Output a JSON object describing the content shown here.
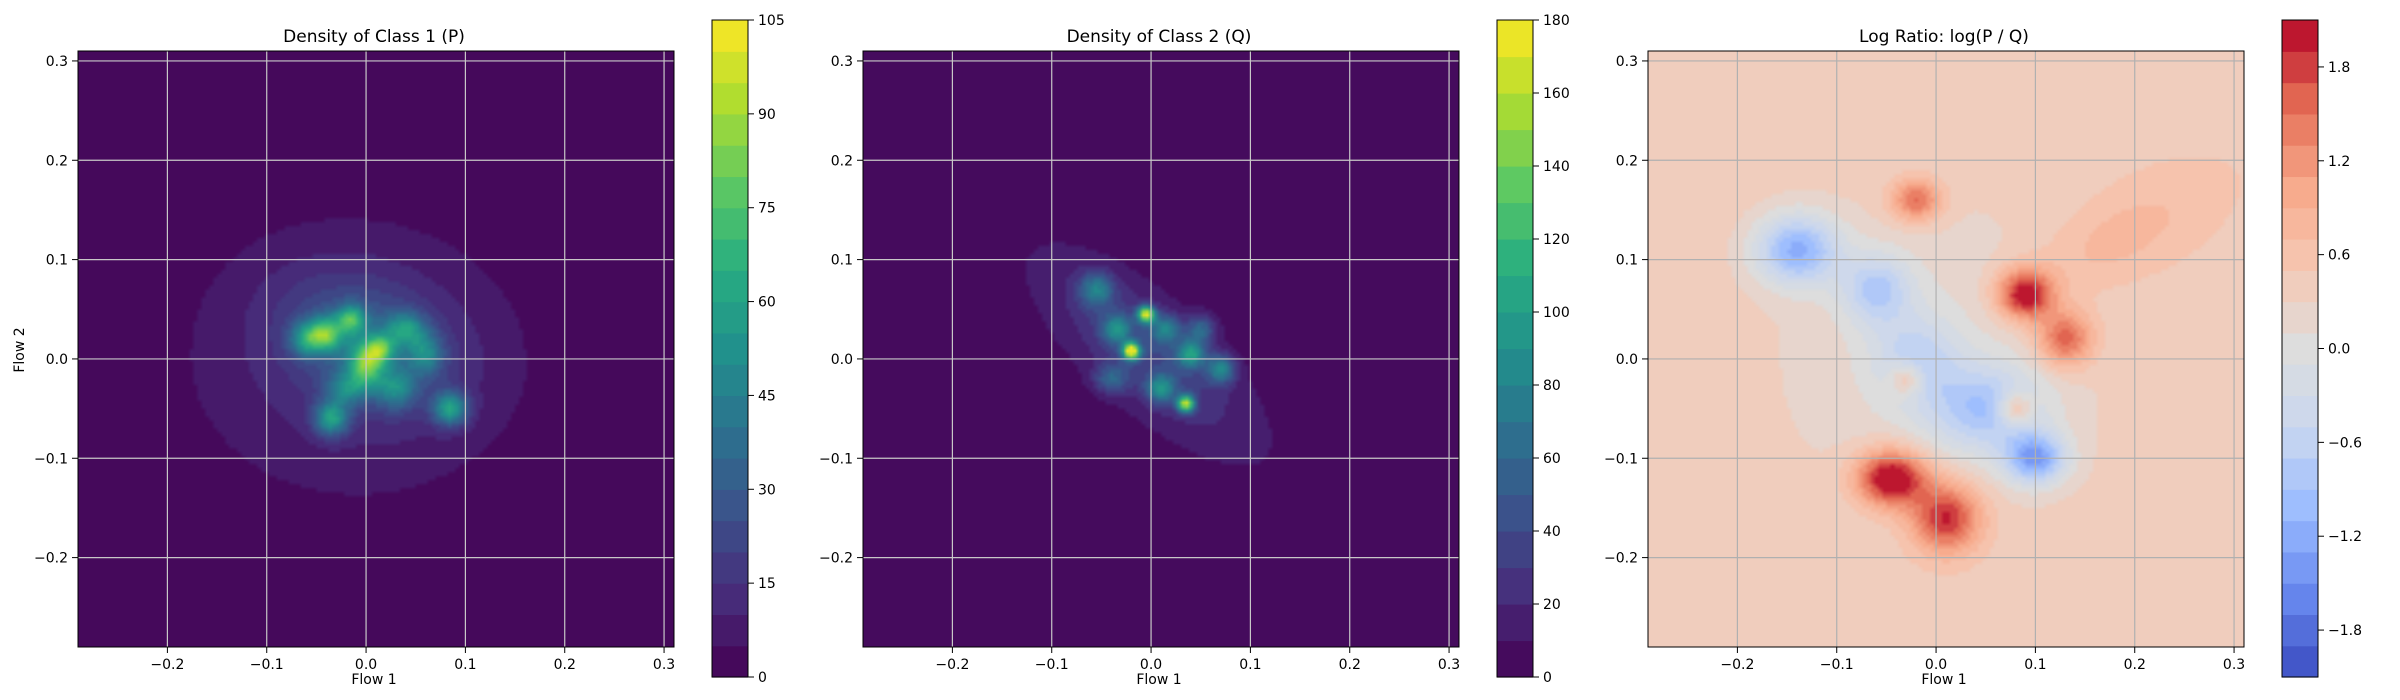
{
  "chart_data": [
    {
      "type": "heatmap",
      "title": "Density of Class 1 (P)",
      "xlabel": "Flow 1",
      "ylabel": "Flow 2",
      "xlim": [
        -0.29,
        0.31
      ],
      "ylim": [
        -0.29,
        0.31
      ],
      "xticks": [
        -0.2,
        -0.1,
        0.0,
        0.1,
        0.2,
        0.3
      ],
      "xtick_labels": [
        "−0.2",
        "−0.1",
        "0.0",
        "0.1",
        "0.2",
        "0.3"
      ],
      "yticks": [
        -0.2,
        -0.1,
        0.0,
        0.1,
        0.2,
        0.3
      ],
      "ytick_labels": [
        "−0.2",
        "−0.1",
        "0.0",
        "0.1",
        "0.2",
        "0.3"
      ],
      "grid": true,
      "colormap": "viridis",
      "colorbar": {
        "min": 0,
        "max": 105,
        "ticks": [
          0,
          15,
          30,
          45,
          60,
          75,
          90,
          105
        ],
        "tick_labels": [
          "0",
          "15",
          "30",
          "45",
          "60",
          "75",
          "90",
          "105"
        ]
      },
      "blobs": [
        {
          "x": -0.01,
          "y": 0.0,
          "sx": 0.115,
          "sy": 0.095,
          "v": 14,
          "rot": 0
        },
        {
          "x": 0.0,
          "y": 0.02,
          "sx": 0.06,
          "sy": 0.04,
          "v": 20,
          "rot": -0.4
        },
        {
          "x": -0.04,
          "y": 0.025,
          "sx": 0.012,
          "sy": 0.012,
          "v": 52
        },
        {
          "x": -0.015,
          "y": 0.04,
          "sx": 0.01,
          "sy": 0.01,
          "v": 46
        },
        {
          "x": 0.0,
          "y": -0.005,
          "sx": 0.012,
          "sy": 0.016,
          "v": 55
        },
        {
          "x": 0.015,
          "y": 0.01,
          "sx": 0.01,
          "sy": 0.01,
          "v": 42
        },
        {
          "x": -0.035,
          "y": -0.06,
          "sx": 0.012,
          "sy": 0.012,
          "v": 48
        },
        {
          "x": 0.085,
          "y": -0.05,
          "sx": 0.012,
          "sy": 0.012,
          "v": 50
        },
        {
          "x": 0.04,
          "y": 0.03,
          "sx": 0.014,
          "sy": 0.012,
          "v": 36
        },
        {
          "x": -0.06,
          "y": 0.02,
          "sx": 0.012,
          "sy": 0.012,
          "v": 38
        },
        {
          "x": 0.03,
          "y": -0.03,
          "sx": 0.014,
          "sy": 0.014,
          "v": 32
        },
        {
          "x": -0.02,
          "y": -0.03,
          "sx": 0.014,
          "sy": 0.012,
          "v": 30
        },
        {
          "x": 0.06,
          "y": 0.005,
          "sx": 0.012,
          "sy": 0.014,
          "v": 30
        }
      ]
    },
    {
      "type": "heatmap",
      "title": "Density of Class 2 (Q)",
      "xlabel": "Flow 1",
      "ylabel": "",
      "xlim": [
        -0.29,
        0.31
      ],
      "ylim": [
        -0.29,
        0.31
      ],
      "xticks": [
        -0.2,
        -0.1,
        0.0,
        0.1,
        0.2,
        0.3
      ],
      "xtick_labels": [
        "−0.2",
        "−0.1",
        "0.0",
        "0.1",
        "0.2",
        "0.3"
      ],
      "yticks": [
        -0.2,
        -0.1,
        0.0,
        0.1,
        0.2,
        0.3
      ],
      "ytick_labels": [
        "−0.2",
        "−0.1",
        "0.0",
        "0.1",
        "0.2",
        "0.3"
      ],
      "grid": true,
      "colormap": "viridis",
      "colorbar": {
        "min": 0,
        "max": 180,
        "ticks": [
          0,
          20,
          40,
          60,
          80,
          100,
          120,
          140,
          160,
          180
        ],
        "tick_labels": [
          "0",
          "20",
          "40",
          "60",
          "80",
          "100",
          "120",
          "140",
          "160",
          "180"
        ]
      },
      "blobs": [
        {
          "x": 0.0,
          "y": 0.0,
          "sx": 0.135,
          "sy": 0.045,
          "v": 16,
          "rot": -0.72
        },
        {
          "x": -0.005,
          "y": 0.01,
          "sx": 0.07,
          "sy": 0.03,
          "v": 22,
          "rot": -0.72
        },
        {
          "x": -0.055,
          "y": 0.07,
          "sx": 0.012,
          "sy": 0.012,
          "v": 60
        },
        {
          "x": -0.035,
          "y": 0.03,
          "sx": 0.01,
          "sy": 0.01,
          "v": 65
        },
        {
          "x": -0.005,
          "y": 0.045,
          "sx": 0.006,
          "sy": 0.006,
          "v": 150
        },
        {
          "x": -0.02,
          "y": 0.008,
          "sx": 0.006,
          "sy": 0.006,
          "v": 165
        },
        {
          "x": 0.035,
          "y": -0.045,
          "sx": 0.006,
          "sy": 0.006,
          "v": 140
        },
        {
          "x": 0.04,
          "y": 0.005,
          "sx": 0.01,
          "sy": 0.01,
          "v": 80
        },
        {
          "x": 0.07,
          "y": -0.01,
          "sx": 0.01,
          "sy": 0.01,
          "v": 70
        },
        {
          "x": 0.01,
          "y": -0.03,
          "sx": 0.01,
          "sy": 0.01,
          "v": 70
        },
        {
          "x": 0.015,
          "y": 0.03,
          "sx": 0.01,
          "sy": 0.01,
          "v": 60
        },
        {
          "x": -0.04,
          "y": -0.02,
          "sx": 0.012,
          "sy": 0.01,
          "v": 45
        },
        {
          "x": 0.05,
          "y": 0.03,
          "sx": 0.01,
          "sy": 0.01,
          "v": 50
        }
      ]
    },
    {
      "type": "heatmap",
      "title": "Log Ratio: log(P / Q)",
      "xlabel": "Flow 1",
      "ylabel": "",
      "xlim": [
        -0.29,
        0.31
      ],
      "ylim": [
        -0.29,
        0.31
      ],
      "xticks": [
        -0.2,
        -0.1,
        0.0,
        0.1,
        0.2,
        0.3
      ],
      "xtick_labels": [
        "−0.2",
        "−0.1",
        "0.0",
        "0.1",
        "0.2",
        "0.3"
      ],
      "yticks": [
        -0.2,
        -0.1,
        0.0,
        0.1,
        0.2,
        0.3
      ],
      "ytick_labels": [
        "−0.2",
        "−0.1",
        "0.0",
        "0.1",
        "0.2",
        "0.3"
      ],
      "grid": true,
      "colormap": "coolwarm",
      "colorbar": {
        "min": -2.1,
        "max": 2.1,
        "ticks": [
          -1.8,
          -1.2,
          -0.6,
          0.0,
          0.6,
          1.2,
          1.8
        ],
        "tick_labels": [
          "−1.8",
          "−1.2",
          "−0.6",
          "0.0",
          "0.6",
          "1.2",
          "1.8"
        ]
      },
      "background": 0.45,
      "blobs": [
        {
          "x": 0.0,
          "y": 0.0,
          "sx": 0.12,
          "sy": 0.12,
          "v": -0.35,
          "rot": 0
        },
        {
          "x": -0.14,
          "y": 0.11,
          "sx": 0.03,
          "sy": 0.025,
          "v": -1.5
        },
        {
          "x": -0.06,
          "y": 0.07,
          "sx": 0.025,
          "sy": 0.025,
          "v": -1.0
        },
        {
          "x": 0.05,
          "y": -0.05,
          "sx": 0.04,
          "sy": 0.03,
          "v": -1.1
        },
        {
          "x": 0.1,
          "y": -0.1,
          "sx": 0.022,
          "sy": 0.018,
          "v": -1.6
        },
        {
          "x": -0.02,
          "y": 0.0,
          "sx": 0.03,
          "sy": 0.03,
          "v": -0.8
        },
        {
          "x": -0.045,
          "y": -0.12,
          "sx": 0.025,
          "sy": 0.02,
          "v": 2.0
        },
        {
          "x": 0.01,
          "y": -0.16,
          "sx": 0.025,
          "sy": 0.025,
          "v": 1.6
        },
        {
          "x": 0.09,
          "y": 0.065,
          "sx": 0.02,
          "sy": 0.018,
          "v": 1.8
        },
        {
          "x": 0.13,
          "y": 0.02,
          "sx": 0.02,
          "sy": 0.02,
          "v": 1.3
        },
        {
          "x": -0.02,
          "y": 0.16,
          "sx": 0.018,
          "sy": 0.015,
          "v": 1.2
        },
        {
          "x": 0.08,
          "y": -0.05,
          "sx": 0.012,
          "sy": 0.012,
          "v": 1.0
        },
        {
          "x": -0.03,
          "y": -0.02,
          "sx": 0.012,
          "sy": 0.012,
          "v": 0.9
        },
        {
          "x": 0.18,
          "y": 0.12,
          "sx": 0.07,
          "sy": 0.03,
          "v": 0.4,
          "rot": 0.5
        }
      ]
    }
  ]
}
